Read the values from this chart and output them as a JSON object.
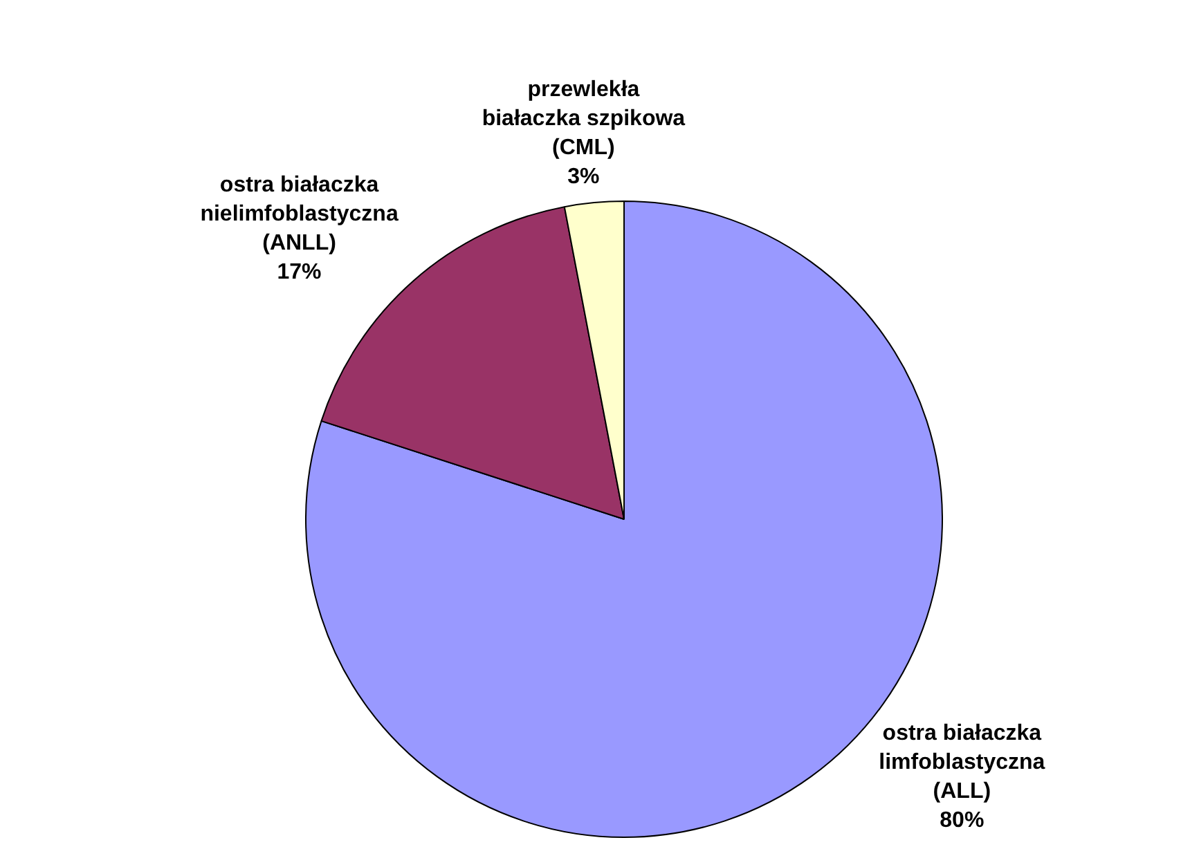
{
  "chart_data": {
    "type": "pie",
    "categories": [
      "ostra białaczka\nlimfoblastyczna\n(ALL)",
      "ostra białaczka\nnielimfoblastyczna\n(ANLL)",
      "przewlekła\nbiałaczka szpikowa\n(CML)"
    ],
    "values": [
      80,
      17,
      3
    ],
    "colors": [
      "#9999ff",
      "#993366",
      "#ffffcc"
    ],
    "value_labels": [
      "80%",
      "17%",
      "3%"
    ],
    "legend": false
  }
}
